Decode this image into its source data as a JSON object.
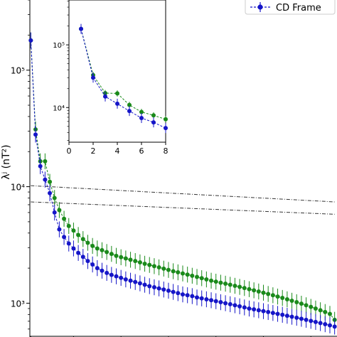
{
  "chart_data": [
    {
      "id": "main",
      "type": "line",
      "ylabel": "λʲ (nT²)",
      "yscale": "log",
      "ylim": [
        520,
        400000
      ],
      "xlim": [
        0.8,
        65.5
      ],
      "y_tick_labels": [
        "10³",
        "10⁴",
        "10⁵"
      ],
      "y_tick_values": [
        1000,
        10000,
        100000
      ],
      "colors": {
        "CD Frame": "#1515c8",
        "green_series": "#1a8a1a"
      },
      "series": [
        {
          "name": "CD Frame",
          "color": "#1515c8",
          "x": [
            1,
            2,
            3,
            4,
            5,
            6,
            7,
            8,
            9,
            10,
            11,
            12,
            13,
            14,
            15,
            16,
            17,
            18,
            19,
            20,
            21,
            22,
            23,
            24,
            25,
            26,
            27,
            28,
            29,
            30,
            31,
            32,
            33,
            34,
            35,
            36,
            37,
            38,
            39,
            40,
            41,
            42,
            43,
            44,
            45,
            46,
            47,
            48,
            49,
            50,
            51,
            52,
            53,
            54,
            55,
            56,
            57,
            58,
            59,
            60,
            61,
            62,
            63,
            64,
            65
          ],
          "values": [
            180000,
            28000,
            15000,
            11500,
            8800,
            6000,
            4300,
            3700,
            3250,
            2950,
            2700,
            2500,
            2300,
            2150,
            2000,
            1900,
            1820,
            1750,
            1700,
            1650,
            1600,
            1560,
            1520,
            1480,
            1440,
            1400,
            1370,
            1340,
            1310,
            1280,
            1250,
            1220,
            1190,
            1170,
            1150,
            1120,
            1100,
            1080,
            1060,
            1040,
            1020,
            1000,
            980,
            960,
            940,
            920,
            900,
            885,
            870,
            855,
            840,
            825,
            810,
            795,
            780,
            765,
            750,
            735,
            720,
            705,
            690,
            675,
            660,
            645,
            630
          ],
          "err_frac": 0.17
        },
        {
          "color": "#1a8a1a",
          "x": [
            1,
            2,
            3,
            4,
            5,
            6,
            7,
            8,
            9,
            10,
            11,
            12,
            13,
            14,
            15,
            16,
            17,
            18,
            19,
            20,
            21,
            22,
            23,
            24,
            25,
            26,
            27,
            28,
            29,
            30,
            31,
            32,
            33,
            34,
            35,
            36,
            37,
            38,
            39,
            40,
            41,
            42,
            43,
            44,
            45,
            46,
            47,
            48,
            49,
            50,
            51,
            52,
            53,
            54,
            55,
            56,
            57,
            58,
            59,
            60,
            61,
            62,
            63,
            64,
            65
          ],
          "values": [
            180000,
            31000,
            16500,
            16500,
            11000,
            8000,
            6300,
            5300,
            4600,
            4200,
            3850,
            3550,
            3300,
            3100,
            2950,
            2850,
            2750,
            2650,
            2550,
            2480,
            2420,
            2360,
            2300,
            2240,
            2180,
            2130,
            2080,
            2030,
            1980,
            1930,
            1880,
            1840,
            1800,
            1760,
            1720,
            1680,
            1640,
            1600,
            1560,
            1530,
            1500,
            1470,
            1440,
            1410,
            1380,
            1350,
            1320,
            1290,
            1260,
            1230,
            1200,
            1170,
            1140,
            1110,
            1080,
            1050,
            1020,
            990,
            960,
            930,
            900,
            870,
            840,
            810,
            720
          ],
          "err_frac": 0.17
        }
      ],
      "reference_lines": [
        {
          "x": [
            1,
            65
          ],
          "values": [
            10200,
            7400
          ]
        },
        {
          "x": [
            1,
            65
          ],
          "values": [
            7400,
            5800
          ]
        }
      ],
      "legend": {
        "entries": [
          "CD Frame"
        ],
        "placement": "top-right"
      },
      "grid": false
    },
    {
      "id": "inset",
      "type": "line",
      "yscale": "log",
      "xlim": [
        0,
        8
      ],
      "ylim": [
        2800,
        520000
      ],
      "x_tick_labels": [
        "0",
        "2",
        "4",
        "6",
        "8"
      ],
      "x_tick_values": [
        0,
        2,
        4,
        6,
        8
      ],
      "y_tick_labels": [
        "10⁴",
        "10⁵"
      ],
      "y_tick_values": [
        10000,
        100000
      ],
      "series": [
        {
          "color": "#1515c8",
          "x": [
            1,
            2,
            3,
            4,
            5,
            6,
            7,
            8
          ],
          "values": [
            180000,
            30000,
            15000,
            11500,
            8800,
            6800,
            5800,
            4700
          ],
          "err_frac": 0.2
        },
        {
          "color": "#1a8a1a",
          "x": [
            1,
            2,
            3,
            4,
            5,
            6,
            7,
            8
          ],
          "values": [
            180000,
            33000,
            17000,
            16800,
            11000,
            8500,
            7500,
            6500
          ],
          "err_frac": 0.12
        }
      ],
      "grid": false
    }
  ]
}
